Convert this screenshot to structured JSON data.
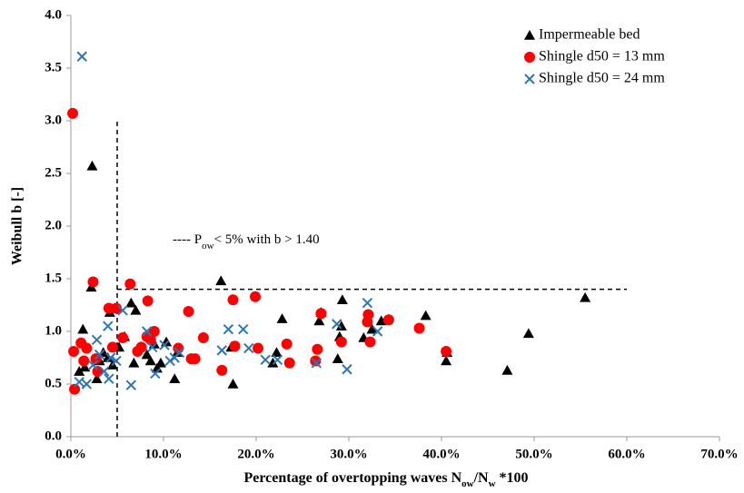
{
  "chart_data": {
    "type": "scatter",
    "ylabel": "Weibull b [-]",
    "xlabel": [
      {
        "text": "Percentage of overtopping waves N"
      },
      {
        "text": "ow",
        "sub": true
      },
      {
        "text": "/N"
      },
      {
        "text": "w",
        "sub": true
      },
      {
        "text": " *100"
      }
    ],
    "annotation": [
      {
        "text": "---- P"
      },
      {
        "text": "ow",
        "sub": true
      },
      {
        "text": "< 5% with b > 1.40"
      }
    ],
    "vline": {
      "x": 5,
      "ymax": 3.0
    },
    "hline": {
      "y": 1.4,
      "xmin": 5,
      "xmax": 60
    },
    "xlim": [
      0,
      70
    ],
    "ylim": [
      0,
      4
    ],
    "xticks": [
      {
        "value": 0,
        "label": "0.0%"
      },
      {
        "value": 10,
        "label": "10.0%"
      },
      {
        "value": 20,
        "label": "20.0%"
      },
      {
        "value": 30,
        "label": "30.0%"
      },
      {
        "value": 40,
        "label": "40.0%"
      },
      {
        "value": 50,
        "label": "50.0%"
      },
      {
        "value": 60,
        "label": "60.0%"
      },
      {
        "value": 70,
        "label": "70.0%"
      }
    ],
    "yticks": [
      {
        "value": 0,
        "label": "0.0"
      },
      0.5,
      {
        "value": 1,
        "label": "1.0"
      },
      1.5,
      {
        "value": 2,
        "label": "2.0"
      },
      2.5,
      {
        "value": 3,
        "label": "3.0"
      },
      3.5,
      {
        "value": 4,
        "label": "4.0"
      }
    ],
    "legend": "upper right",
    "series": [
      {
        "name": "Impermeable bed",
        "color": "#000000",
        "marker": "triangle",
        "x": [
          2.3,
          2.2,
          1.3,
          0.9,
          1.5,
          2.8,
          3.1,
          3.5,
          4.0,
          4.5,
          4.2,
          5.2,
          5.8,
          6.5,
          6.8,
          7.0,
          8.2,
          8.6,
          9.0,
          9.3,
          9.7,
          10.3,
          11.2,
          11.5,
          16.2,
          17.5,
          17.3,
          21.8,
          22.2,
          22.8,
          26.8,
          27.0,
          28.8,
          29.0,
          29.2,
          29.3,
          31.6,
          32.5,
          33.5,
          38.3,
          40.5,
          40.6,
          47.1,
          49.4,
          55.5
        ],
        "values": [
          2.57,
          1.42,
          1.02,
          0.62,
          0.66,
          0.55,
          0.72,
          0.8,
          0.75,
          0.68,
          1.18,
          0.85,
          0.95,
          1.27,
          0.7,
          1.2,
          0.78,
          0.72,
          0.88,
          0.65,
          0.7,
          0.9,
          0.55,
          0.8,
          1.48,
          0.5,
          0.85,
          0.7,
          0.8,
          1.12,
          1.1,
          1.18,
          0.74,
          0.95,
          1.05,
          1.3,
          0.94,
          1.02,
          1.1,
          1.15,
          0.72,
          0.8,
          0.63,
          0.98,
          1.32
        ]
      },
      {
        "name": "Shingle d50 = 13 mm",
        "color": "#ff0000",
        "marker": "circle",
        "x": [
          0.2,
          0.3,
          0.4,
          1.1,
          1.4,
          1.7,
          2.4,
          2.7,
          2.9,
          4.1,
          4.5,
          4.9,
          5.6,
          6.4,
          7.2,
          7.6,
          8.3,
          8.2,
          8.6,
          9.0,
          11.6,
          12.7,
          13.0,
          13.4,
          14.3,
          16.3,
          17.5,
          17.7,
          19.9,
          20.2,
          23.3,
          23.6,
          26.6,
          26.4,
          27.0,
          29.2,
          32.0,
          32.3,
          32.1,
          34.3,
          37.6,
          40.5
        ],
        "values": [
          3.07,
          0.81,
          0.45,
          0.89,
          0.72,
          0.84,
          1.47,
          0.74,
          0.62,
          1.22,
          0.85,
          1.22,
          0.94,
          1.45,
          0.81,
          0.85,
          1.29,
          0.95,
          0.92,
          1.0,
          0.84,
          1.19,
          0.74,
          0.74,
          0.94,
          0.63,
          1.3,
          0.86,
          1.33,
          0.84,
          0.88,
          0.7,
          0.83,
          0.72,
          1.17,
          0.9,
          1.09,
          0.9,
          1.16,
          1.11,
          1.03,
          0.81
        ]
      },
      {
        "name": "Shingle d50 = 24 mm",
        "color": "#2e75b6",
        "marker": "x",
        "x": [
          1.2,
          0.9,
          1.7,
          2.4,
          2.8,
          3.1,
          3.6,
          4.0,
          4.1,
          4.3,
          4.9,
          5.6,
          6.5,
          8.2,
          8.8,
          9.1,
          10.1,
          10.7,
          11.2,
          11.7,
          16.3,
          17.0,
          18.6,
          19.2,
          21.0,
          22.3,
          26.5,
          28.7,
          29.8,
          32.0,
          33.1
        ],
        "values": [
          3.61,
          0.52,
          0.5,
          0.68,
          0.92,
          0.78,
          0.62,
          1.05,
          0.55,
          0.75,
          0.72,
          1.2,
          0.49,
          1.0,
          0.85,
          0.6,
          0.87,
          0.72,
          0.75,
          0.8,
          0.82,
          1.02,
          1.02,
          0.84,
          0.73,
          0.73,
          0.7,
          1.07,
          0.64,
          1.27,
          1.0
        ]
      }
    ]
  }
}
